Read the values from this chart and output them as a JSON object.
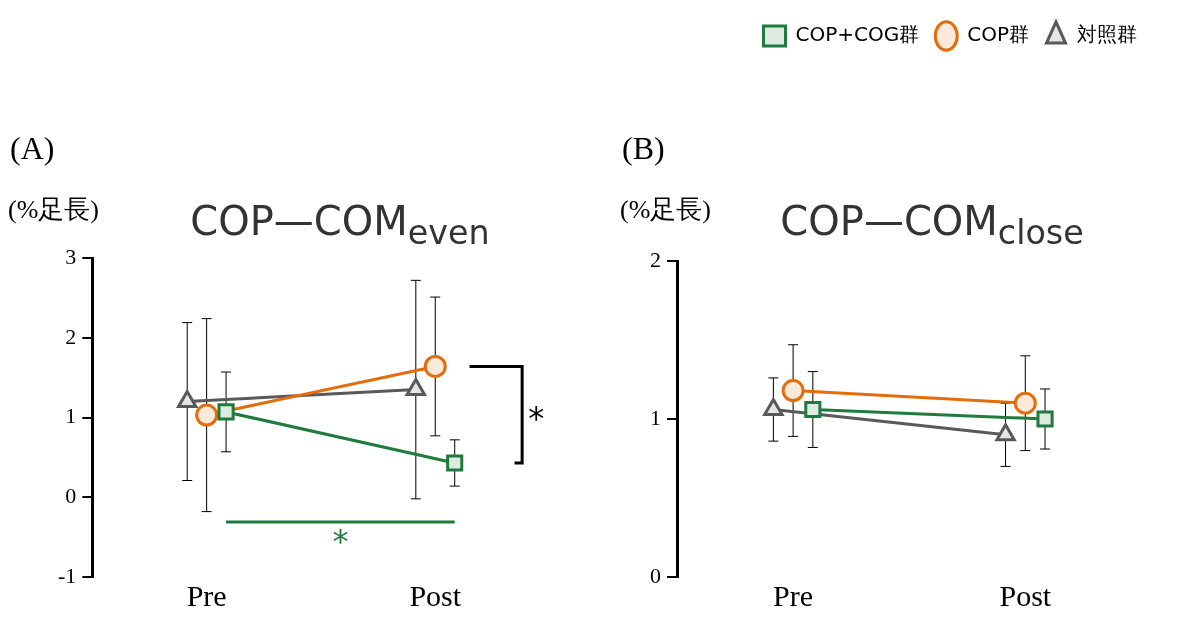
{
  "chart_data": [
    {
      "type": "line",
      "title": "COP—COM$_{even}$",
      "ylabel": "(%足長)",
      "categories": [
        "Pre",
        "Post"
      ],
      "ylim": [
        -1,
        3
      ],
      "yticks": [
        -1,
        0,
        1,
        2,
        3
      ],
      "legend": false,
      "annotations": [
        "(A)",
        "*",
        "*"
      ],
      "series": [
        {
          "color": "#1e7b3c",
          "marker": "square",
          "values": [
            1.07,
            0.43
          ],
          "errors": [
            0.5,
            0.29
          ]
        },
        {
          "color": "#e46c0a",
          "marker": "circle",
          "values": [
            1.03,
            1.64
          ],
          "errors": [
            1.21,
            0.87
          ]
        },
        {
          "color": "#595959",
          "marker": "triangle",
          "values": [
            1.2,
            1.35
          ],
          "errors": [
            0.99,
            1.37
          ]
        }
      ]
    },
    {
      "type": "line",
      "title": "COP—COM$_{close}$",
      "ylabel": "(%足長)",
      "categories": [
        "Pre",
        "Post"
      ],
      "ylim": [
        0,
        2
      ],
      "yticks": [
        0,
        1,
        2
      ],
      "legend": "top right",
      "annotations": [
        "(B)"
      ],
      "series": [
        {
          "name": "COP+COG群",
          "color": "#1e7b3c",
          "marker": "square",
          "values": [
            1.06,
            1.0
          ],
          "errors": [
            0.24,
            0.19
          ]
        },
        {
          "name": "COP群",
          "color": "#e46c0a",
          "marker": "circle",
          "values": [
            1.18,
            1.1
          ],
          "errors": [
            0.29,
            0.3
          ]
        },
        {
          "name": "対照群",
          "color": "#595959",
          "marker": "triangle",
          "values": [
            1.06,
            0.9
          ],
          "errors": [
            0.2,
            0.2
          ]
        }
      ]
    }
  ]
}
